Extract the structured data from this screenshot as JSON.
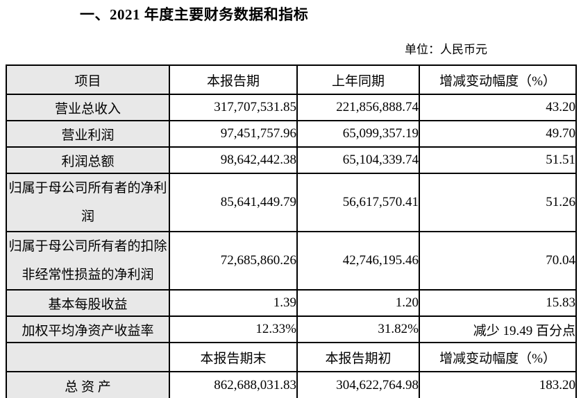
{
  "page": {
    "title": "一、2021 年度主要财务数据和指标",
    "unit_label": "单位：人民币元"
  },
  "table": {
    "header1": [
      "项目",
      "本报告期",
      "上年同期",
      "增减变动幅度（%）"
    ],
    "rows1": [
      {
        "item": "营业总收入",
        "current": "317,707,531.85",
        "prior": "221,856,888.74",
        "change": "43.20"
      },
      {
        "item": "营业利润",
        "current": "97,451,757.96",
        "prior": "65,099,357.19",
        "change": "49.70"
      },
      {
        "item": "利润总额",
        "current": "98,642,442.38",
        "prior": "65,104,339.74",
        "change": "51.51"
      },
      {
        "item": "归属于母公司所有者的净利润",
        "current": "85,641,449.79",
        "prior": "56,617,570.41",
        "change": "51.26"
      },
      {
        "item": "归属于母公司所有者的扣除非经常性损益的净利润",
        "current": "72,685,860.26",
        "prior": "42,746,195.46",
        "change": "70.04"
      },
      {
        "item": "基本每股收益",
        "current": "1.39",
        "prior": "1.20",
        "change": "15.83"
      },
      {
        "item": "加权平均净资产收益率",
        "current": "12.33%",
        "prior": "31.82%",
        "change": "减少 19.49 百分点"
      }
    ],
    "header2": [
      "",
      "本报告期末",
      "本报告期初",
      "增减变动幅度（%）"
    ],
    "rows2": [
      {
        "item": "总 资 产",
        "current": "862,688,031.83",
        "prior": "304,622,764.98",
        "change": "183.20"
      }
    ],
    "colors": {
      "item_column_bg": "#e8e8e8",
      "border": "#000000",
      "text": "#000000"
    }
  }
}
